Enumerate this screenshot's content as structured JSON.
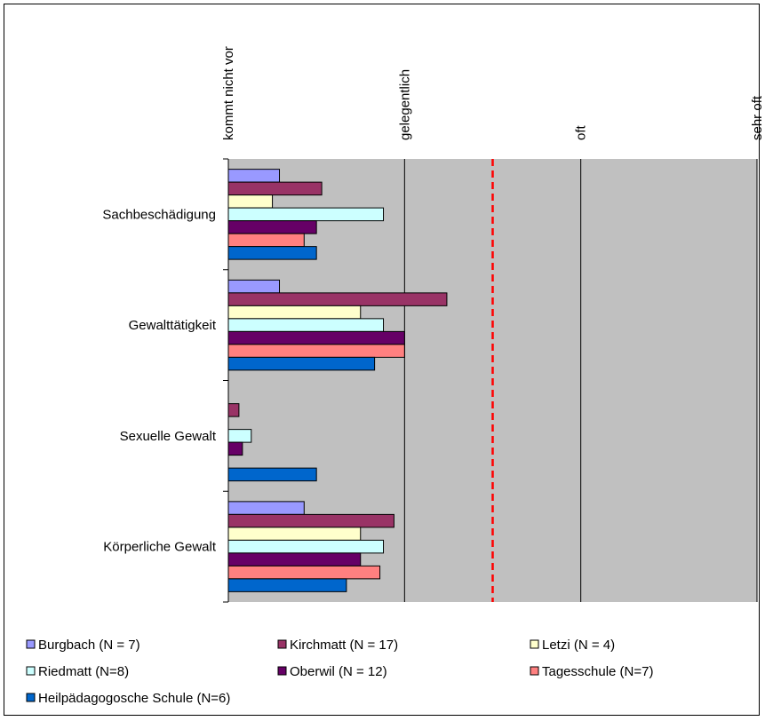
{
  "chart_data": {
    "type": "bar",
    "orientation": "horizontal",
    "scale_labels": [
      "kommt nicht vor",
      "gelegentlich",
      "oft",
      "sehr oft"
    ],
    "xlim": [
      0,
      3
    ],
    "reference_line": {
      "value": 1.5,
      "color": "#ff0000",
      "style": "dashed"
    },
    "categories": [
      "Sachbeschädigung",
      "Gewalttätigkeit",
      "Sexuelle Gewalt",
      "Körperliche Gewalt"
    ],
    "series": [
      {
        "name": "Burgbach (N = 7)",
        "color": "#9999ff",
        "values": [
          0.29,
          0.29,
          0.0,
          0.43
        ]
      },
      {
        "name": "Kirchmatt (N = 17)",
        "color": "#993366",
        "values": [
          0.53,
          1.24,
          0.06,
          0.94
        ]
      },
      {
        "name": "Letzi (N = 4)",
        "color": "#ffffcc",
        "values": [
          0.25,
          0.75,
          0.0,
          0.75
        ]
      },
      {
        "name": "Riedmatt (N=8)",
        "color": "#ccffff",
        "values": [
          0.88,
          0.88,
          0.13,
          0.88
        ]
      },
      {
        "name": "Oberwil (N = 12)",
        "color": "#660066",
        "values": [
          0.5,
          1.0,
          0.08,
          0.75
        ]
      },
      {
        "name": "Tagesschule (N=7)",
        "color": "#ff8080",
        "values": [
          0.43,
          1.0,
          0.0,
          0.86
        ]
      },
      {
        "name": "Heilpädagogosche Schule (N=6)",
        "color": "#0066cc",
        "values": [
          0.5,
          0.83,
          0.5,
          0.67
        ]
      }
    ],
    "plot_background": "#c0c0c0",
    "gridlines": true,
    "legend_position": "bottom"
  }
}
